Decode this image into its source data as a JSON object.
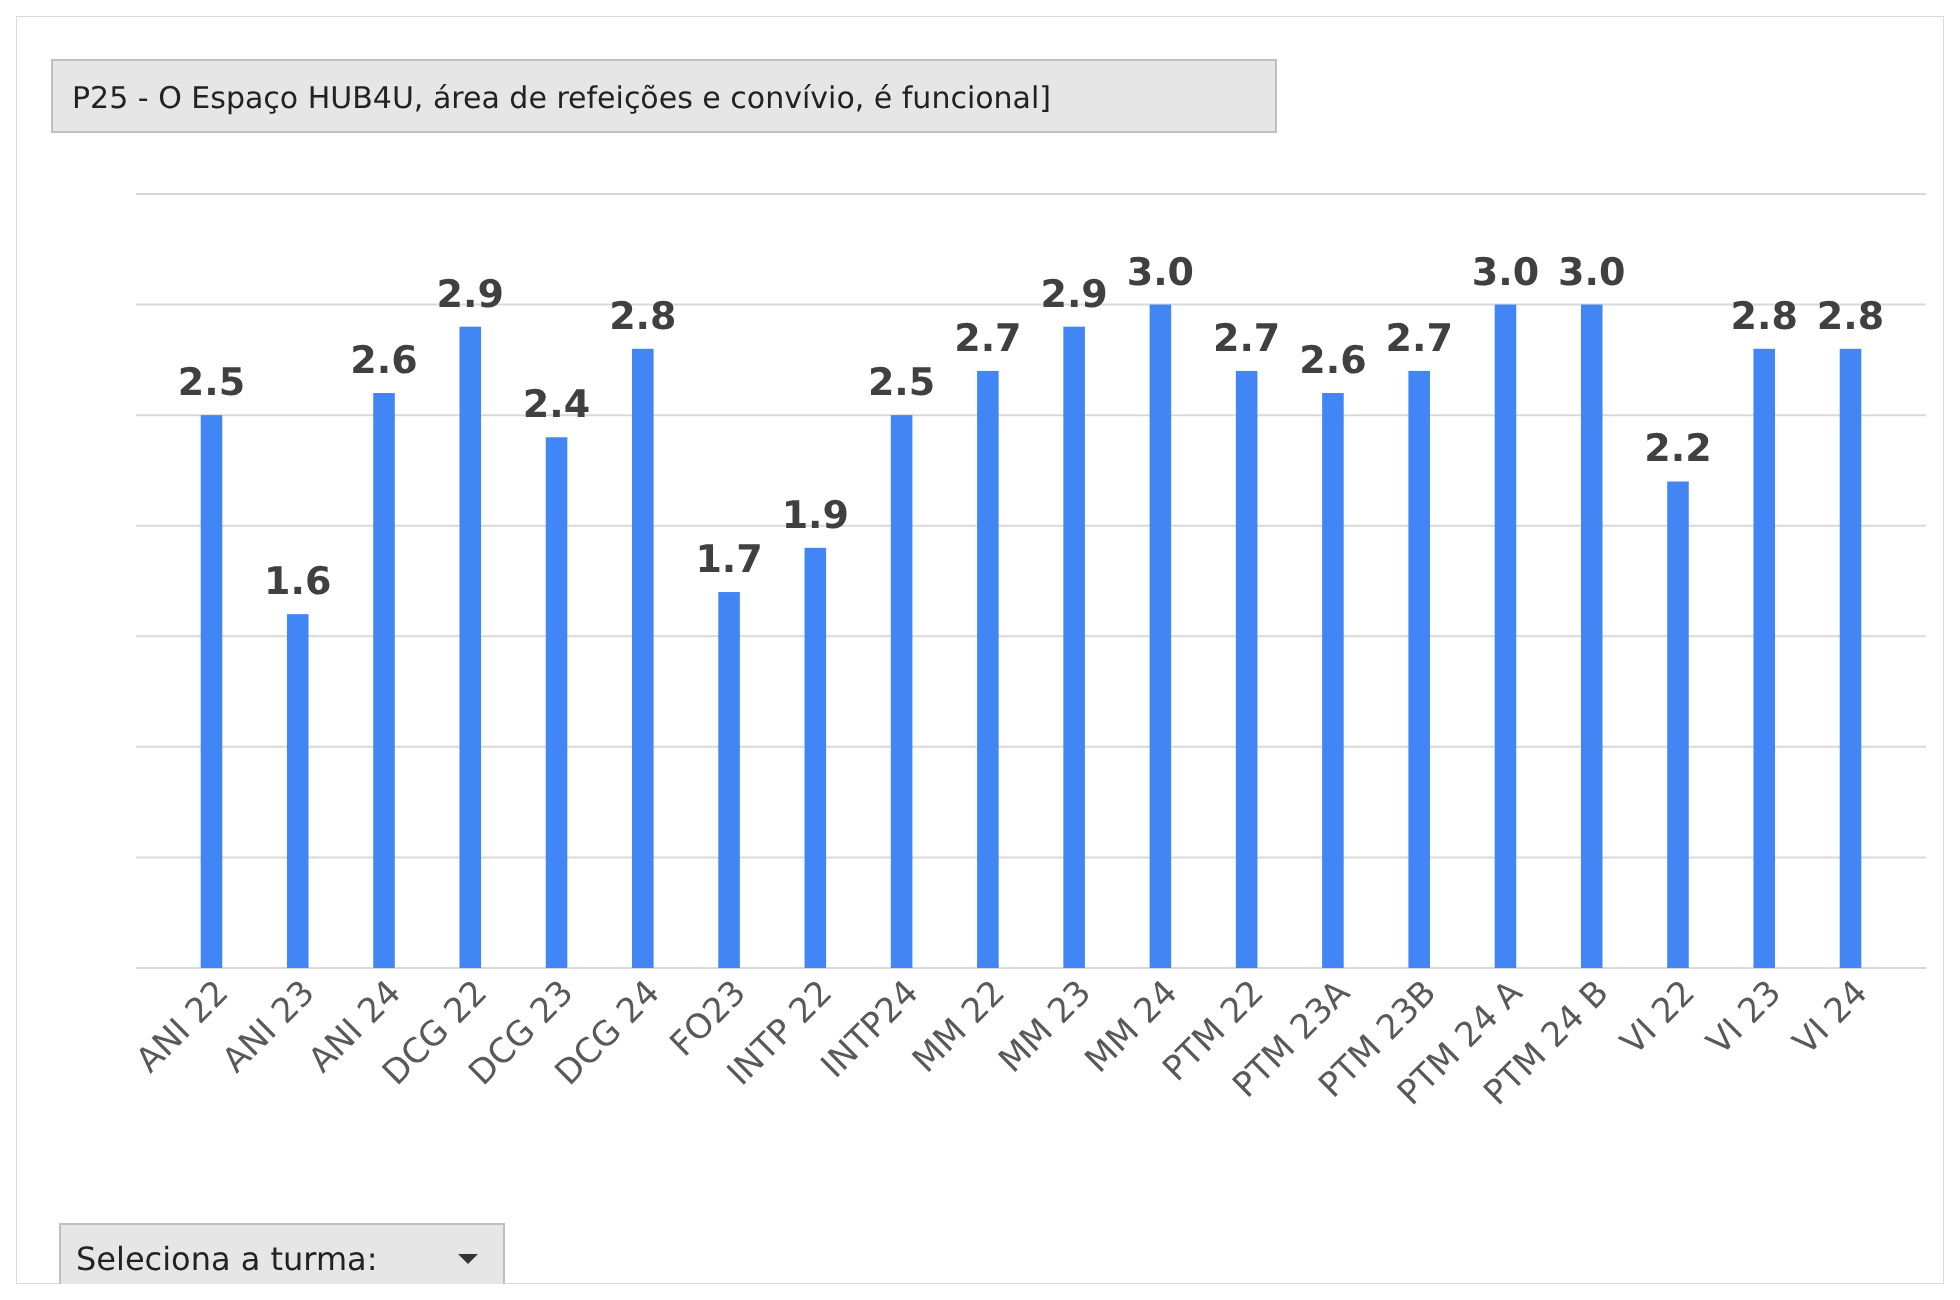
{
  "chart_data": {
    "type": "bar",
    "title": "P25 - O Espaço HUB4U, área de refeições e convívio, é funcional]",
    "categories": [
      "ANI 22",
      "ANI 23",
      "ANI 24",
      "DCG 22",
      "DCG 23",
      "DCG 24",
      "FO23",
      "INTP 22",
      "INTP24",
      "MM 22",
      "MM 23",
      "MM 24",
      "PTM 22",
      "PTM 23A",
      "PTM 23B",
      "PTM 24 A",
      "PTM 24 B",
      "VI 22",
      "VI 23",
      "VI 24"
    ],
    "values": [
      2.5,
      1.6,
      2.6,
      2.9,
      2.4,
      2.8,
      1.7,
      1.9,
      2.5,
      2.7,
      2.9,
      3.0,
      2.7,
      2.6,
      2.7,
      3.0,
      3.0,
      2.2,
      2.8,
      2.8
    ],
    "value_labels": [
      "2.5",
      "1.6",
      "2.6",
      "2.9",
      "2.4",
      "2.8",
      "1.7",
      "1.9",
      "2.5",
      "2.7",
      "2.9",
      "3.0",
      "2.7",
      "2.6",
      "2.7",
      "3.0",
      "3.0",
      "2.2",
      "2.8",
      "2.8"
    ],
    "color": "#4285f4",
    "grid": "y",
    "tick_labels": "x",
    "ylim": [
      0,
      3.5
    ],
    "yticks": [
      {
        "value": 0,
        "label": null
      },
      {
        "value": 0.5,
        "label": null
      },
      {
        "value": 1,
        "label": null
      },
      {
        "value": 1.5,
        "label": null
      },
      {
        "value": 2,
        "label": null
      },
      {
        "value": 2.5,
        "label": null
      },
      {
        "value": 3,
        "label": null
      },
      {
        "value": 3.5,
        "label": null
      }
    ],
    "annotations": [
      "Seleciona a turma:"
    ]
  }
}
